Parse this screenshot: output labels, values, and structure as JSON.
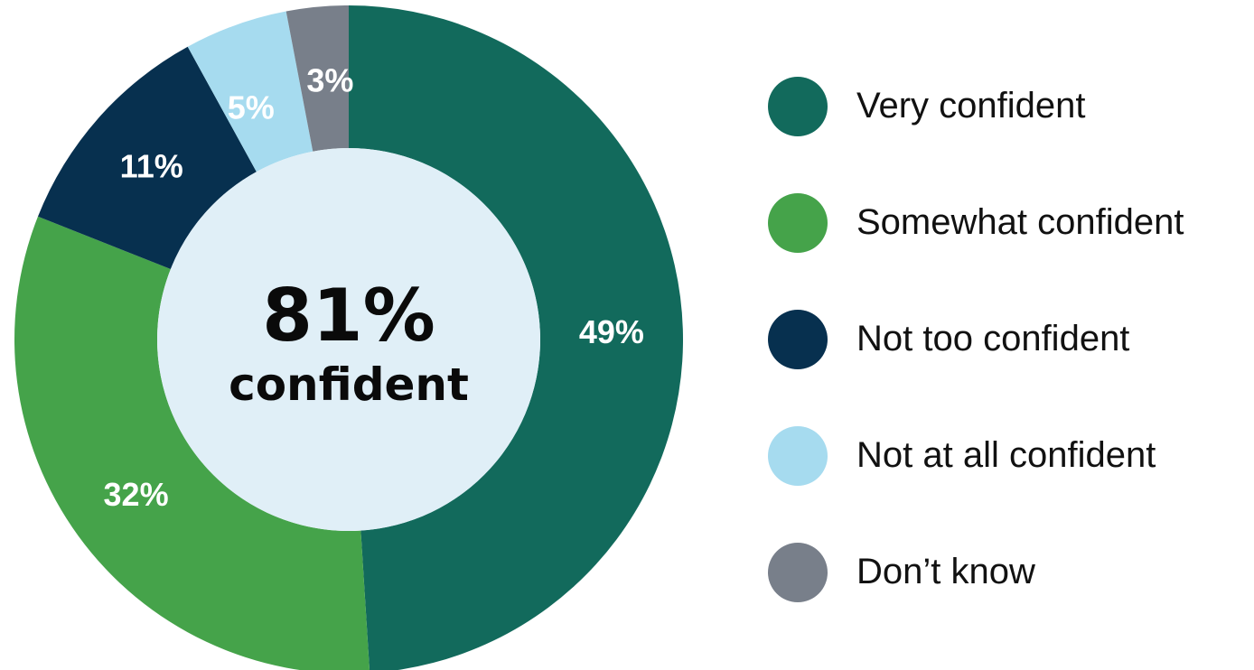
{
  "chart_data": {
    "type": "pie",
    "style": "donut",
    "categories": [
      "Very confident",
      "Somewhat confident",
      "Not too confident",
      "Not at all confident",
      "Don’t know"
    ],
    "values": [
      49,
      32,
      11,
      5,
      3
    ],
    "value_labels": [
      "49%",
      "32%",
      "11%",
      "5%",
      "3%"
    ],
    "colors": [
      "#126a5c",
      "#45a34a",
      "#07304f",
      "#a6dbef",
      "#787f8a"
    ],
    "center_text": {
      "value": "81%",
      "label": "confident"
    },
    "center_color": "#e0eff7",
    "legend_placement": "right"
  }
}
